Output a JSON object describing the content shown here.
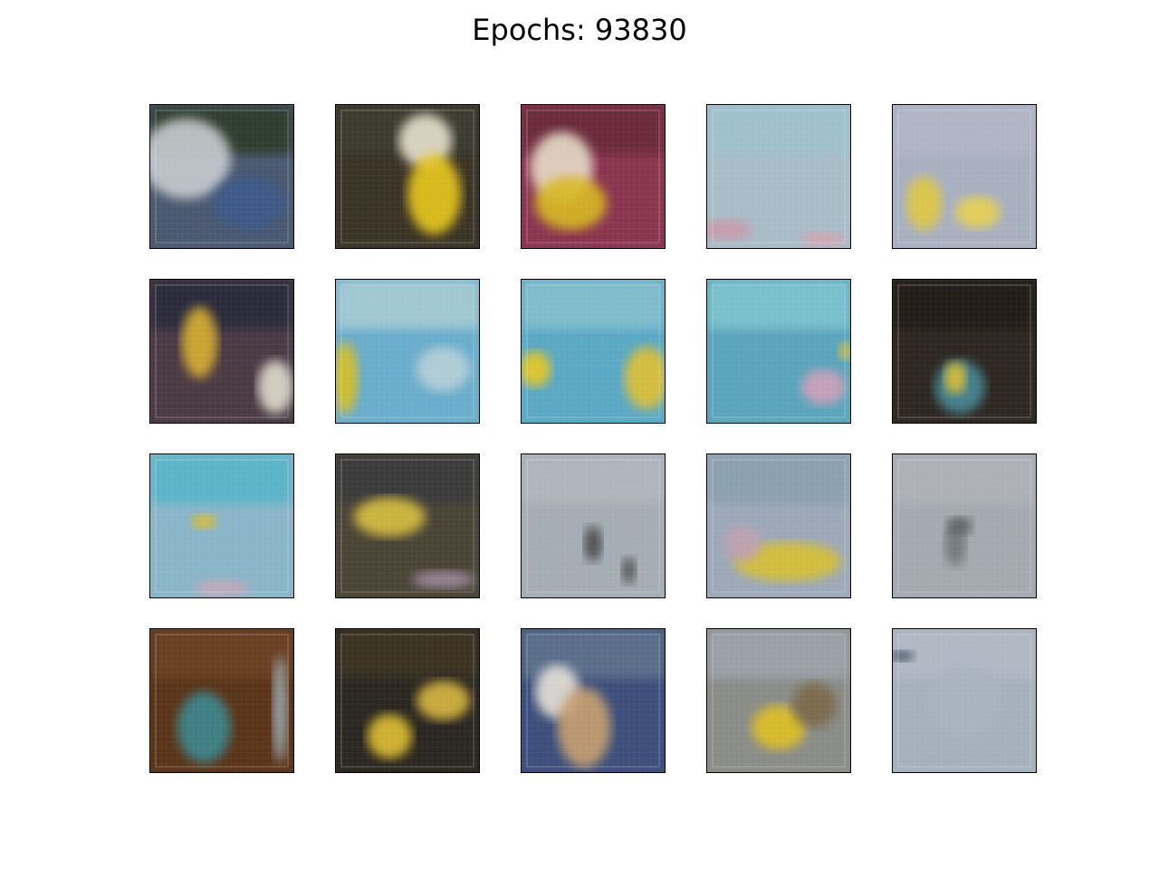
{
  "figure": {
    "title": "Epochs: 93830"
  },
  "tiles": [
    {
      "bg": "#4a5870",
      "top": "#2e3e2f",
      "blobs": [
        {
          "c": "#c8ccd0"
        },
        {
          "c": "#3d5a8a"
        }
      ]
    },
    {
      "bg": "#3a3326",
      "top": "#3a3a2e",
      "blobs": [
        {
          "c": "#e8e2d0"
        },
        {
          "c": "#e8c81e"
        }
      ]
    },
    {
      "bg": "#8a3550",
      "top": "#6a2a3a",
      "blobs": [
        {
          "c": "#e6dcc8"
        },
        {
          "c": "#d8b820"
        }
      ]
    },
    {
      "bg": "#a8bcc8",
      "top": "#9ec0cc",
      "blobs": [
        {
          "c": "#c89aa8"
        },
        {
          "c": "#d8a0b0"
        }
      ]
    },
    {
      "bg": "#a8b0c0",
      "top": "#b0b4c4",
      "blobs": [
        {
          "c": "#e0c840"
        },
        {
          "c": "#e8d050"
        }
      ]
    },
    {
      "bg": "#4a3a44",
      "top": "#2a2a3a",
      "blobs": [
        {
          "c": "#d8b030"
        },
        {
          "c": "#e0dcd0"
        }
      ]
    },
    {
      "bg": "#6aaccc",
      "top": "#a0c8d0",
      "blobs": [
        {
          "c": "#d8c020"
        },
        {
          "c": "#b8d0d8"
        }
      ]
    },
    {
      "bg": "#5aa8c4",
      "top": "#80bccc",
      "blobs": [
        {
          "c": "#e8c820"
        },
        {
          "c": "#e0c030"
        }
      ]
    },
    {
      "bg": "#5aa4bc",
      "top": "#7ac0cc",
      "blobs": [
        {
          "c": "#d0a0b8"
        },
        {
          "c": "#e0c030"
        }
      ]
    },
    {
      "bg": "#2e2620",
      "top": "#241c18",
      "blobs": [
        {
          "c": "#4a8a98"
        },
        {
          "c": "#e0c030"
        }
      ]
    },
    {
      "bg": "#8ab4c8",
      "top": "#5ab4c8",
      "blobs": [
        {
          "c": "#e0c020"
        },
        {
          "c": "#c4a8b8"
        }
      ]
    },
    {
      "bg": "#4a4436",
      "top": "#3a3a3a",
      "blobs": [
        {
          "c": "#d8c040"
        },
        {
          "c": "#a08ca0"
        }
      ]
    },
    {
      "bg": "#a4acb4",
      "top": "#b0b4bc",
      "blobs": [
        {
          "c": "#444444"
        },
        {
          "c": "#505050"
        }
      ]
    },
    {
      "bg": "#9ca8b8",
      "top": "#8aa0b0",
      "blobs": [
        {
          "c": "#d8c030"
        },
        {
          "c": "#c0a0b0"
        }
      ]
    },
    {
      "bg": "#a4a8b0",
      "top": "#aeb0b8",
      "blobs": [
        {
          "c": "#707478"
        },
        {
          "c": "#5a5e62"
        }
      ]
    },
    {
      "bg": "#5a3418",
      "top": "#6a4020",
      "blobs": [
        {
          "c": "#3a8890"
        },
        {
          "c": "#a0b0b8"
        }
      ]
    },
    {
      "bg": "#2a2620",
      "top": "#3a3024",
      "blobs": [
        {
          "c": "#e0c030"
        },
        {
          "c": "#d8b840"
        }
      ]
    },
    {
      "bg": "#3c4e7a",
      "top": "#5a6e8a",
      "blobs": [
        {
          "c": "#e6e2d8"
        },
        {
          "c": "#c8a070"
        }
      ]
    },
    {
      "bg": "#8a8c88",
      "top": "#9aa0a8",
      "blobs": [
        {
          "c": "#e0c020"
        },
        {
          "c": "#7a6848"
        }
      ]
    },
    {
      "bg": "#a4b0bc",
      "top": "#b0b8c4",
      "blobs": [
        {
          "c": "#3a4a5a"
        },
        {
          "c": "#a8b4c0"
        }
      ]
    }
  ]
}
